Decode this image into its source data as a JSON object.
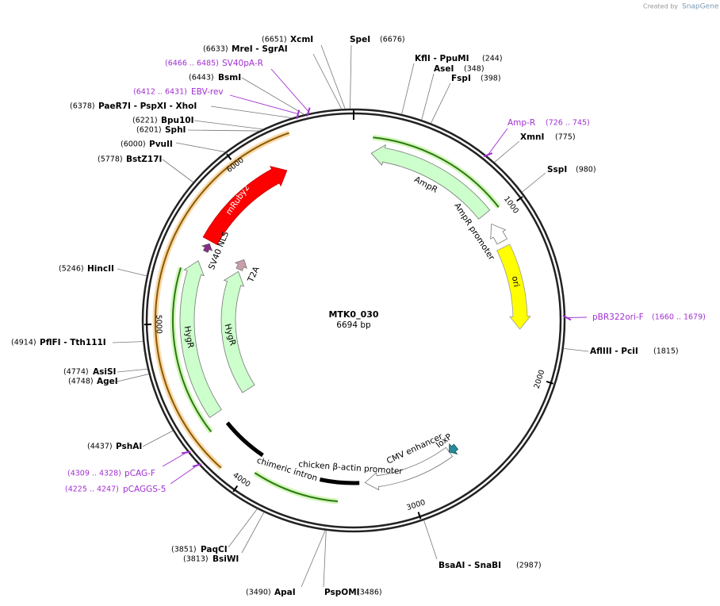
{
  "credit": "Created by",
  "brand": "SnapGene",
  "plasmid": {
    "name": "MTK0_030",
    "length": "6694 bp"
  },
  "ruler_ticks": [
    1000,
    2000,
    3000,
    4000,
    5000,
    6000
  ],
  "sites": [
    {
      "name": "XcmI",
      "position": "(6651)"
    },
    {
      "name": "SpeI",
      "position": "(6676)"
    },
    {
      "name": "MreI  - SgrAI",
      "position": "(6633)"
    },
    {
      "name": "KflI  - PpuMI",
      "position": "(244)"
    },
    {
      "name": "AseI",
      "position": "(348)"
    },
    {
      "name": "BsmI",
      "position": "(6443)"
    },
    {
      "name": "FspI",
      "position": "(398)"
    },
    {
      "name": "PaeR7I  - PspXI  - XhoI",
      "position": "(6378)"
    },
    {
      "name": "Bpu10I",
      "position": "(6221)"
    },
    {
      "name": "SphI",
      "position": "(6201)"
    },
    {
      "name": "XmnI",
      "position": "(775)"
    },
    {
      "name": "PvuII",
      "position": "(6000)"
    },
    {
      "name": "BstZ17I",
      "position": "(5778)"
    },
    {
      "name": "SspI",
      "position": "(980)"
    },
    {
      "name": "HincII",
      "position": "(5246)"
    },
    {
      "name": "PflFI  - Tth111I",
      "position": "(4914)"
    },
    {
      "name": "AflIII  - PciI",
      "position": "(1815)"
    },
    {
      "name": "AsiSI",
      "position": "(4774)"
    },
    {
      "name": "AgeI",
      "position": "(4748)"
    },
    {
      "name": "PshAI",
      "position": "(4437)"
    },
    {
      "name": "PaqCI",
      "position": "(3851)"
    },
    {
      "name": "BsiWI",
      "position": "(3813)"
    },
    {
      "name": "ApaI",
      "position": "(3490)"
    },
    {
      "name": "PspOMI",
      "position": "(3486)"
    },
    {
      "name": "BsaAI  - SnaBI",
      "position": "(2987)"
    }
  ],
  "primers": [
    {
      "name": "SV40pA-R",
      "range": "(6466 .. 6485)"
    },
    {
      "name": "EBV-rev",
      "range": "(6412 .. 6431)"
    },
    {
      "name": "Amp-R",
      "range": "(726 .. 745)"
    },
    {
      "name": "pBR322ori-F",
      "range": "(1660 .. 1679)"
    },
    {
      "name": "pCAG-F",
      "range": "(4309 .. 4328)"
    },
    {
      "name": "pCAGGS-5",
      "range": "(4225 .. 4247)"
    }
  ],
  "features": [
    "AmpR",
    "AmpR promoter",
    "ori",
    "mRuby2",
    "SV40 NLS",
    "T2A",
    "HygR",
    "HygR",
    "chimeric intron",
    "chicken β-actin promoter",
    "CMV enhancer",
    "loxP"
  ]
}
